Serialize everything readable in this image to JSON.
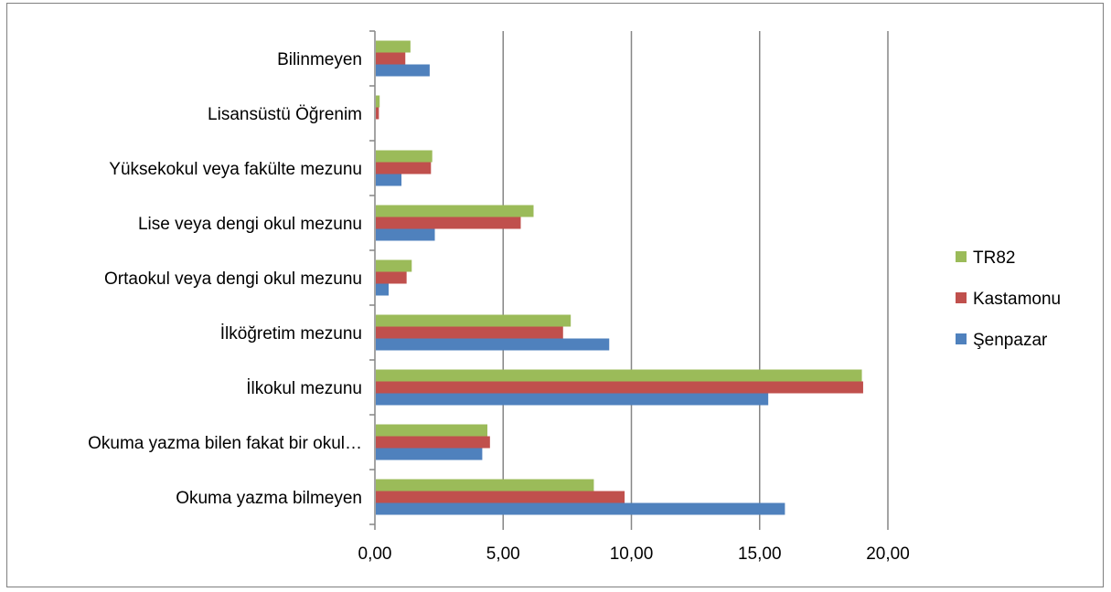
{
  "chart_data": {
    "type": "bar",
    "orientation": "horizontal",
    "categories": [
      "Okuma yazma bilmeyen",
      "Okuma yazma bilen fakat bir okul…",
      "İlkokul mezunu",
      "İlköğretim mezunu",
      "Ortaokul veya dengi okul mezunu",
      "Lise veya dengi okul mezunu",
      "Yüksekokul veya fakülte mezunu",
      "Lisansüstü Öğrenim",
      "Bilinmeyen"
    ],
    "series": [
      {
        "name": "Şenpazar",
        "color": "#4f81bd",
        "values": [
          15.95,
          4.15,
          15.3,
          9.1,
          0.5,
          2.3,
          1.0,
          0.0,
          2.1
        ]
      },
      {
        "name": "Kastamonu",
        "color": "#c0504d",
        "values": [
          9.7,
          4.45,
          19.0,
          7.3,
          1.2,
          5.65,
          2.15,
          0.12,
          1.15
        ]
      },
      {
        "name": "TR82",
        "color": "#9bbb59",
        "values": [
          8.5,
          4.35,
          18.95,
          7.6,
          1.4,
          6.15,
          2.2,
          0.15,
          1.35
        ]
      }
    ],
    "xlim": [
      0,
      20
    ],
    "xticks": [
      "0,00",
      "5,00",
      "10,00",
      "15,00",
      "20,00"
    ],
    "xtick_values": [
      0,
      5,
      10,
      15,
      20
    ],
    "grid": true,
    "legend_position": "right",
    "legend_order": [
      "TR82",
      "Kastamonu",
      "Şenpazar"
    ]
  }
}
